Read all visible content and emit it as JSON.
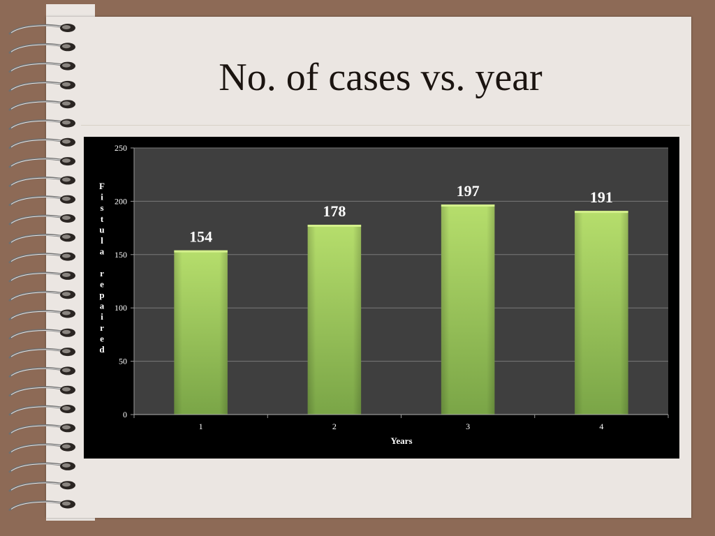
{
  "slide": {
    "title": "No. of cases vs. year"
  },
  "colors": {
    "background": "#8d6a56",
    "paper": "#ebe6e2",
    "plot_area": "#3f3f3f",
    "chart_frame": "#000000",
    "bar_light": "#b3dc6a",
    "bar_dark": "#7ea84a"
  },
  "chart_data": {
    "type": "bar",
    "title": "",
    "categories": [
      "1",
      "2",
      "3",
      "4"
    ],
    "values": [
      154,
      178,
      197,
      191
    ],
    "data_labels": [
      "154",
      "178",
      "197",
      "191"
    ],
    "xlabel": "Years",
    "ylabel": "Fistula repaired",
    "ylim": [
      0,
      250
    ],
    "yticks": [
      0,
      50,
      100,
      150,
      200,
      250
    ],
    "grid": true,
    "legend": "none"
  }
}
